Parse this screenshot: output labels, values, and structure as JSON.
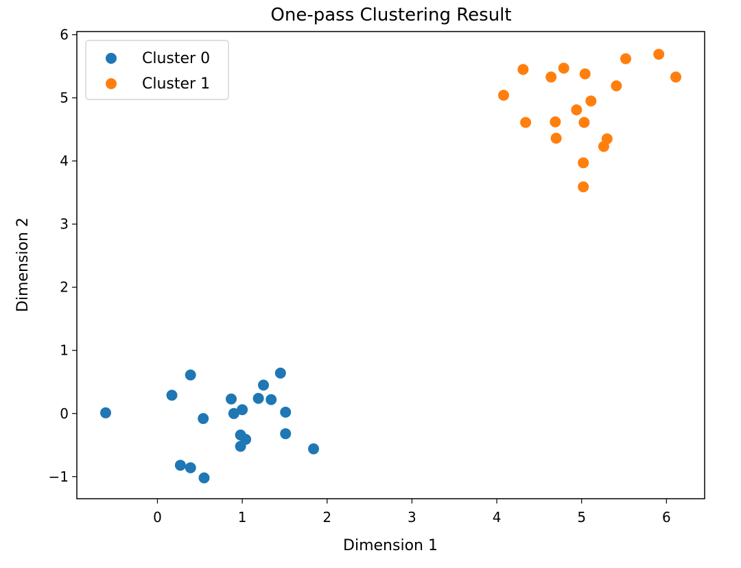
{
  "chart_data": {
    "type": "scatter",
    "title": "One-pass Clustering Result",
    "xlabel": "Dimension 1",
    "ylabel": "Dimension 2",
    "xlim": [
      -0.95,
      6.45
    ],
    "ylim": [
      -1.35,
      6.05
    ],
    "xticks": [
      0,
      1,
      2,
      3,
      4,
      5,
      6
    ],
    "yticks": [
      -1,
      0,
      1,
      2,
      3,
      4,
      5,
      6
    ],
    "xtick_labels": [
      "0",
      "1",
      "2",
      "3",
      "4",
      "5",
      "6"
    ],
    "ytick_labels": [
      "−1",
      "0",
      "1",
      "2",
      "3",
      "4",
      "5",
      "6"
    ],
    "grid": false,
    "legend_position": "upper-left",
    "series": [
      {
        "name": "Cluster 0",
        "color": "#1f77b4",
        "points": [
          [
            -0.61,
            0.01
          ],
          [
            0.17,
            0.29
          ],
          [
            0.39,
            0.61
          ],
          [
            0.27,
            -0.82
          ],
          [
            0.39,
            -0.86
          ],
          [
            0.55,
            -1.02
          ],
          [
            0.54,
            -0.08
          ],
          [
            0.87,
            0.23
          ],
          [
            0.9,
            0.0
          ],
          [
            1.0,
            0.06
          ],
          [
            0.98,
            -0.34
          ],
          [
            1.04,
            -0.41
          ],
          [
            0.98,
            -0.52
          ],
          [
            1.19,
            0.24
          ],
          [
            1.25,
            0.45
          ],
          [
            1.34,
            0.22
          ],
          [
            1.45,
            0.64
          ],
          [
            1.51,
            0.02
          ],
          [
            1.51,
            -0.32
          ],
          [
            1.84,
            -0.56
          ]
        ]
      },
      {
        "name": "Cluster 1",
        "color": "#ff7f0e",
        "points": [
          [
            4.08,
            5.04
          ],
          [
            4.31,
            5.45
          ],
          [
            4.34,
            4.61
          ],
          [
            4.64,
            5.33
          ],
          [
            4.79,
            5.47
          ],
          [
            4.69,
            4.62
          ],
          [
            4.7,
            4.36
          ],
          [
            4.94,
            4.81
          ],
          [
            5.04,
            5.38
          ],
          [
            5.03,
            4.61
          ],
          [
            5.11,
            4.95
          ],
          [
            5.02,
            3.97
          ],
          [
            5.02,
            3.59
          ],
          [
            5.26,
            4.23
          ],
          [
            5.3,
            4.35
          ],
          [
            5.41,
            5.19
          ],
          [
            5.52,
            5.62
          ],
          [
            5.91,
            5.69
          ],
          [
            6.11,
            5.33
          ]
        ]
      }
    ]
  }
}
